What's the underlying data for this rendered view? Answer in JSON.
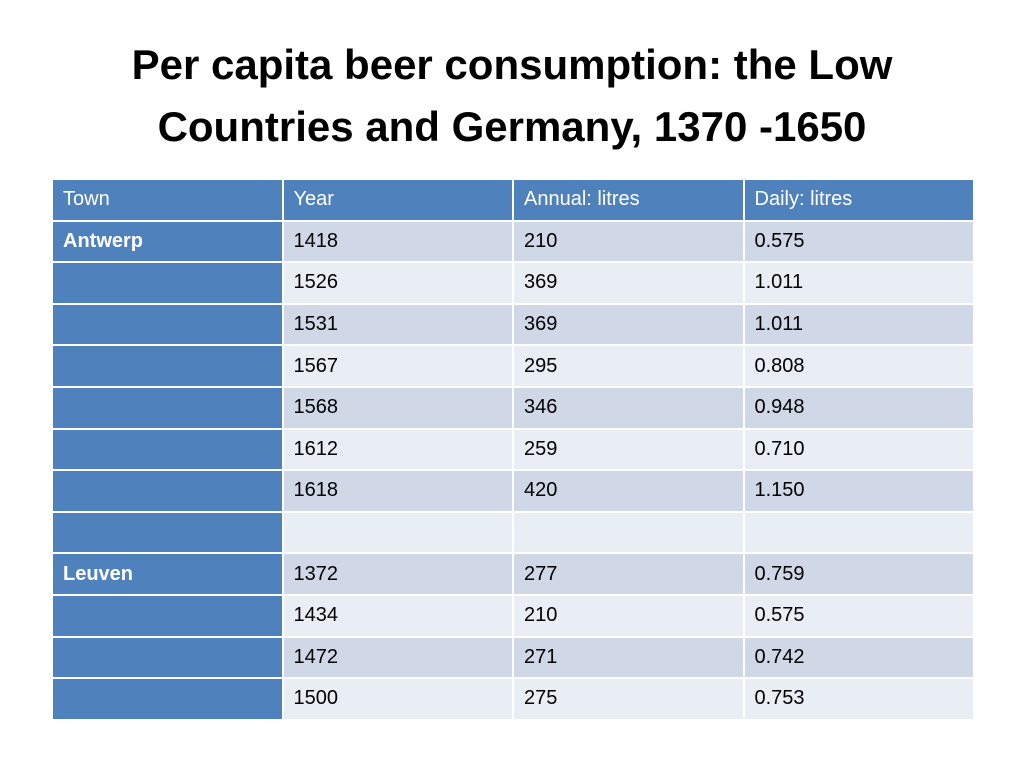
{
  "slide": {
    "title_line1": "Per capita beer consumption: the Low",
    "title_line2": "Countries and Germany, 1370 -1650"
  },
  "table": {
    "headers": [
      "Town",
      "Year",
      "Annual: litres",
      "Daily: litres"
    ],
    "rows": [
      [
        "Antwerp",
        "1418",
        "210",
        "0.575"
      ],
      [
        "",
        "1526",
        "369",
        "1.011"
      ],
      [
        "",
        "1531",
        "369",
        "1.011"
      ],
      [
        "",
        "1567",
        "295",
        "0.808"
      ],
      [
        "",
        "1568",
        "346",
        "0.948"
      ],
      [
        "",
        "1612",
        "259",
        "0.710"
      ],
      [
        "",
        "1618",
        "420",
        "1.150"
      ],
      [
        "",
        "",
        "",
        ""
      ],
      [
        "Leuven",
        "1372",
        "277",
        "0.759"
      ],
      [
        "",
        "1434",
        "210",
        "0.575"
      ],
      [
        "",
        "1472",
        "271",
        "0.742"
      ],
      [
        "",
        "1500",
        "275",
        "0.753"
      ]
    ]
  },
  "colors": {
    "header_and_first_column": "#4f81bd",
    "row_band_dark": "#d0d8e8",
    "row_band_light": "#e9edf4"
  }
}
